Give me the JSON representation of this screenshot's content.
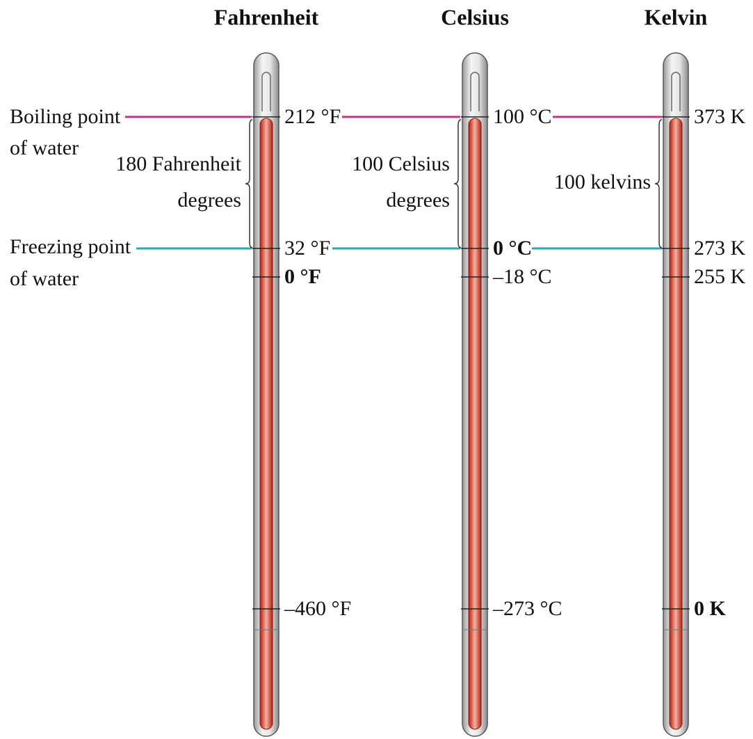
{
  "thermometers": [
    {
      "title": "Fahrenheit",
      "marks": [
        "212 °F",
        "32 °F",
        "0 °F",
        "–460 °F"
      ],
      "span": [
        "180 Fahrenheit",
        "degrees"
      ]
    },
    {
      "title": "Celsius",
      "marks": [
        "100 °C",
        "0 °C",
        "–18 °C",
        "–273 °C"
      ],
      "span": [
        "100 Celsius",
        "degrees"
      ]
    },
    {
      "title": "Kelvin",
      "marks": [
        "373 K",
        "273 K",
        "255 K",
        "0 K"
      ],
      "span": [
        "100 kelvins"
      ]
    }
  ],
  "reference_labels": {
    "boiling": [
      "Boiling point",
      "of water"
    ],
    "freezing": [
      "Freezing point",
      "of water"
    ]
  }
}
